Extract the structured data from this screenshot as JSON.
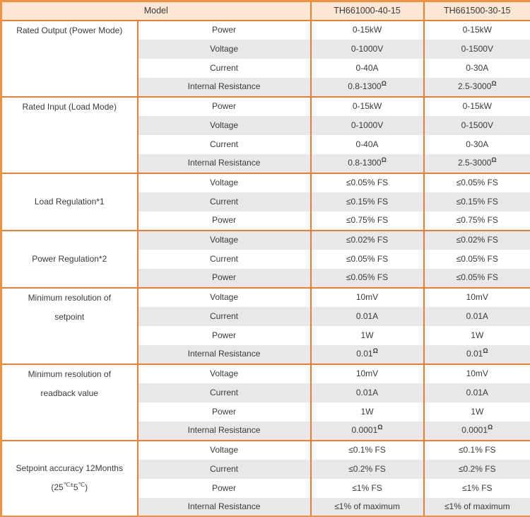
{
  "header": {
    "model_label": "Model",
    "columns": [
      "TH661000-40-15",
      "TH661500-30-15"
    ]
  },
  "sections": [
    {
      "label_lines": [
        [
          {
            "t": "Rated Output (Power Mode)"
          }
        ]
      ],
      "label_valign": "top",
      "rows": [
        {
          "param": "Power",
          "values": [
            [
              {
                "t": "0-15kW"
              }
            ],
            [
              {
                "t": "0-15kW"
              }
            ]
          ]
        },
        {
          "param": "Voltage",
          "values": [
            [
              {
                "t": "0-1000V"
              }
            ],
            [
              {
                "t": "0-1500V"
              }
            ]
          ]
        },
        {
          "param": "Current",
          "values": [
            [
              {
                "t": "0-40A"
              }
            ],
            [
              {
                "t": "0-30A"
              }
            ]
          ]
        },
        {
          "param": "Internal Resistance",
          "values": [
            [
              {
                "t": "0.8-1300"
              },
              {
                "sup": "Ω"
              }
            ],
            [
              {
                "t": "2.5-3000"
              },
              {
                "sup": "Ω"
              }
            ]
          ]
        }
      ]
    },
    {
      "label_lines": [
        [
          {
            "t": "Rated Input (Load Mode)"
          }
        ]
      ],
      "label_valign": "top",
      "rows": [
        {
          "param": "Power",
          "values": [
            [
              {
                "t": "0-15kW"
              }
            ],
            [
              {
                "t": "0-15kW"
              }
            ]
          ]
        },
        {
          "param": "Voltage",
          "values": [
            [
              {
                "t": "0-1000V"
              }
            ],
            [
              {
                "t": "0-1500V"
              }
            ]
          ]
        },
        {
          "param": "Current",
          "values": [
            [
              {
                "t": "0-40A"
              }
            ],
            [
              {
                "t": "0-30A"
              }
            ]
          ]
        },
        {
          "param": "Internal Resistance",
          "values": [
            [
              {
                "t": "0.8-1300"
              },
              {
                "sup": "Ω"
              }
            ],
            [
              {
                "t": "2.5-3000"
              },
              {
                "sup": "Ω"
              }
            ]
          ]
        }
      ]
    },
    {
      "label_lines": [
        [
          {
            "t": "Load Regulation*1"
          }
        ]
      ],
      "label_valign": "middle",
      "rows": [
        {
          "param": "Voltage",
          "values": [
            [
              {
                "t": "≤0.05% FS"
              }
            ],
            [
              {
                "t": "≤0.05% FS"
              }
            ]
          ]
        },
        {
          "param": "Current",
          "values": [
            [
              {
                "t": "≤0.15% FS"
              }
            ],
            [
              {
                "t": "≤0.15% FS"
              }
            ]
          ]
        },
        {
          "param": "Power",
          "values": [
            [
              {
                "t": "≤0.75% FS"
              }
            ],
            [
              {
                "t": "≤0.75% FS"
              }
            ]
          ]
        }
      ]
    },
    {
      "label_lines": [
        [
          {
            "t": "Power Regulation*2"
          }
        ]
      ],
      "label_valign": "middle",
      "rows": [
        {
          "param": "Voltage",
          "values": [
            [
              {
                "t": "≤0.02% FS"
              }
            ],
            [
              {
                "t": "≤0.02% FS"
              }
            ]
          ]
        },
        {
          "param": "Current",
          "values": [
            [
              {
                "t": "≤0.05% FS"
              }
            ],
            [
              {
                "t": "≤0.05% FS"
              }
            ]
          ]
        },
        {
          "param": "Power",
          "values": [
            [
              {
                "t": "≤0.05% FS"
              }
            ],
            [
              {
                "t": "≤0.05% FS"
              }
            ]
          ]
        }
      ]
    },
    {
      "label_lines": [
        [
          {
            "t": "Minimum resolution of"
          }
        ],
        [
          {
            "t": "setpoint"
          }
        ]
      ],
      "label_valign": "top",
      "rows": [
        {
          "param": "Voltage",
          "values": [
            [
              {
                "t": "10mV"
              }
            ],
            [
              {
                "t": "10mV"
              }
            ]
          ]
        },
        {
          "param": "Current",
          "values": [
            [
              {
                "t": "0.01A"
              }
            ],
            [
              {
                "t": "0.01A"
              }
            ]
          ]
        },
        {
          "param": "Power",
          "values": [
            [
              {
                "t": "1W"
              }
            ],
            [
              {
                "t": "1W"
              }
            ]
          ]
        },
        {
          "param": "Internal Resistance",
          "values": [
            [
              {
                "t": "0.01"
              },
              {
                "sup": "Ω"
              }
            ],
            [
              {
                "t": "0.01"
              },
              {
                "sup": "Ω"
              }
            ]
          ]
        }
      ]
    },
    {
      "label_lines": [
        [
          {
            "t": "Minimum resolution of"
          }
        ],
        [
          {
            "t": "readback value"
          }
        ]
      ],
      "label_valign": "top",
      "rows": [
        {
          "param": "Voltage",
          "values": [
            [
              {
                "t": "10mV"
              }
            ],
            [
              {
                "t": "10mV"
              }
            ]
          ]
        },
        {
          "param": "Current",
          "values": [
            [
              {
                "t": "0.01A"
              }
            ],
            [
              {
                "t": "0.01A"
              }
            ]
          ]
        },
        {
          "param": "Power",
          "values": [
            [
              {
                "t": "1W"
              }
            ],
            [
              {
                "t": "1W"
              }
            ]
          ]
        },
        {
          "param": "Internal Resistance",
          "values": [
            [
              {
                "t": "0.0001"
              },
              {
                "sup": "Ω"
              }
            ],
            [
              {
                "t": "0.0001"
              },
              {
                "sup": "Ω"
              }
            ]
          ]
        }
      ]
    },
    {
      "label_lines": [
        [
          {
            "t": "Setpoint accuracy 12Months"
          }
        ],
        [
          {
            "t": "(25"
          },
          {
            "sup": "℃±"
          },
          {
            "t": "5"
          },
          {
            "sup": "℃"
          },
          {
            "t": ")"
          }
        ]
      ],
      "label_valign": "middle",
      "rows": [
        {
          "param": "Voltage",
          "values": [
            [
              {
                "t": "≤0.1% FS"
              }
            ],
            [
              {
                "t": "≤0.1% FS"
              }
            ]
          ]
        },
        {
          "param": "Current",
          "values": [
            [
              {
                "t": "≤0.2% FS"
              }
            ],
            [
              {
                "t": "≤0.2% FS"
              }
            ]
          ]
        },
        {
          "param": "Power",
          "values": [
            [
              {
                "t": "≤1% FS"
              }
            ],
            [
              {
                "t": "≤1% FS"
              }
            ]
          ]
        },
        {
          "param": "Internal Resistance",
          "values": [
            [
              {
                "t": "≤1% of maximum"
              }
            ],
            [
              {
                "t": "≤1% of maximum"
              }
            ]
          ]
        }
      ]
    }
  ],
  "colors": {
    "border": "#ED7D31",
    "outer_border": "#F0923F",
    "header_bg": "#FCE6D4",
    "band_bg": "#E7E8E9",
    "text": "#3A3A3A"
  }
}
